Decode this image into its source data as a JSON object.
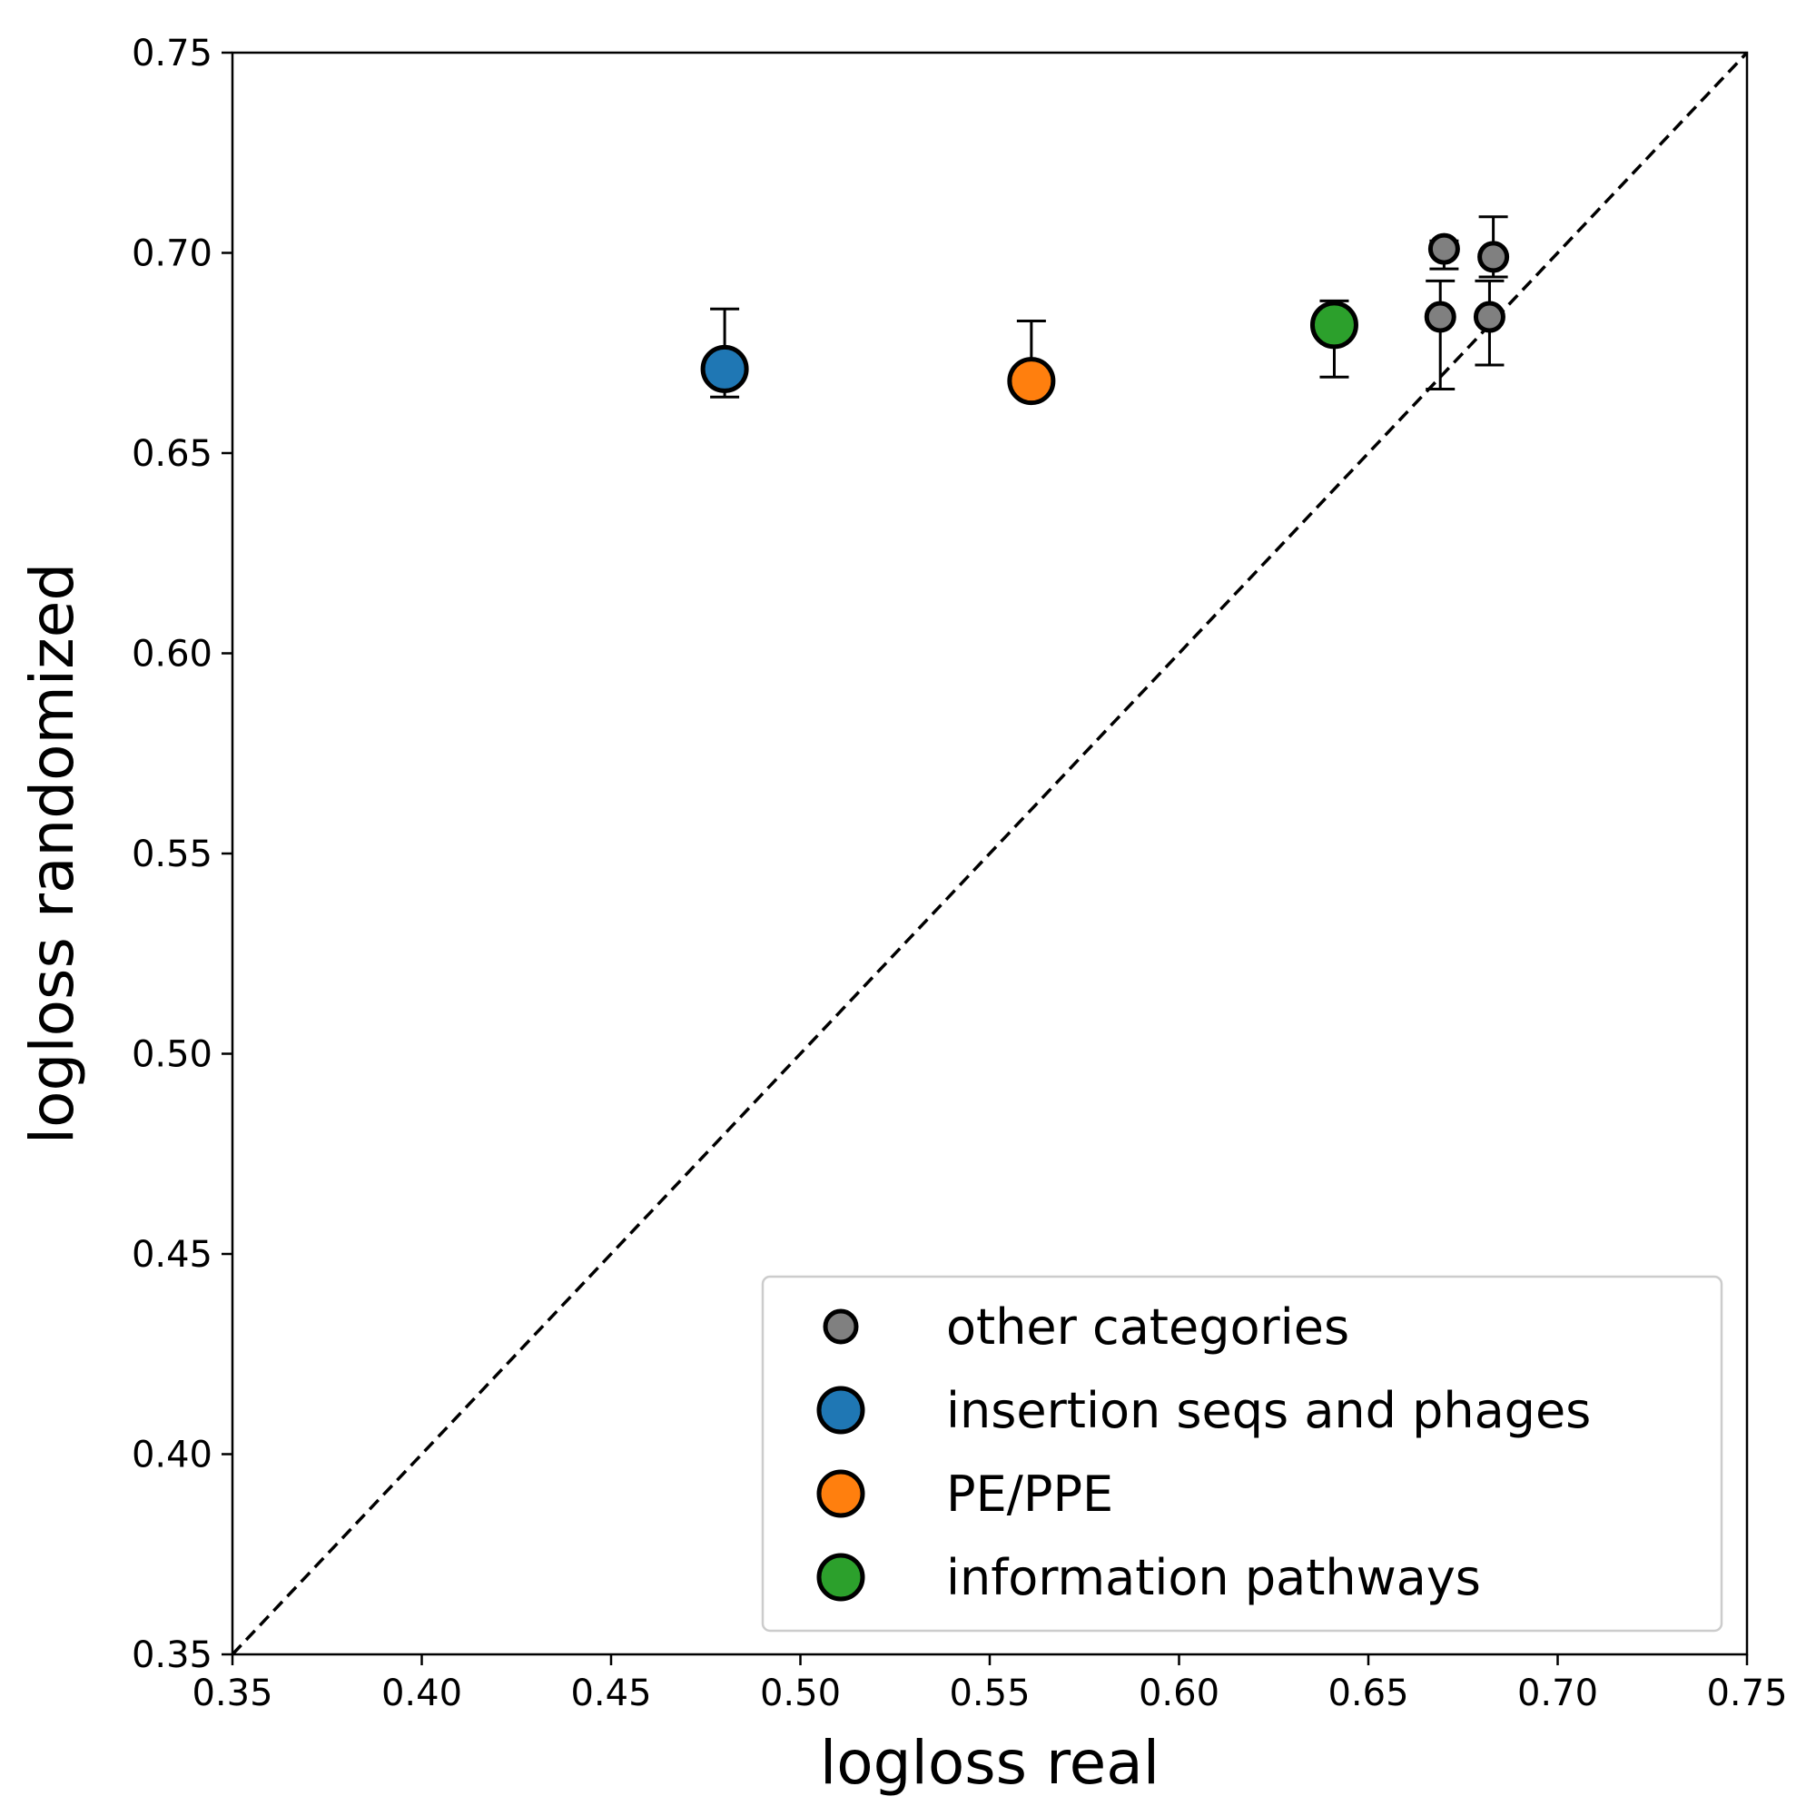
{
  "chart_data": {
    "type": "scatter",
    "title": "",
    "xlabel": "logloss real",
    "ylabel": "logloss randomized",
    "xlim": [
      0.35,
      0.75
    ],
    "ylim": [
      0.35,
      0.75
    ],
    "xticks": [
      "0.35",
      "0.40",
      "0.45",
      "0.50",
      "0.55",
      "0.60",
      "0.65",
      "0.70",
      "0.75"
    ],
    "yticks": [
      "0.35",
      "0.40",
      "0.45",
      "0.50",
      "0.55",
      "0.60",
      "0.65",
      "0.70",
      "0.75"
    ],
    "xtick_values": [
      0.35,
      0.4,
      0.45,
      0.5,
      0.55,
      0.6,
      0.65,
      0.7,
      0.75
    ],
    "ytick_values": [
      0.35,
      0.4,
      0.45,
      0.5,
      0.55,
      0.6,
      0.65,
      0.7,
      0.75
    ],
    "grid": false,
    "legend_position": "lower-right",
    "reference_line": {
      "style": "dashed",
      "from": [
        0.35,
        0.35
      ],
      "to": [
        0.75,
        0.75
      ],
      "color": "#000000"
    },
    "series": [
      {
        "name": "other categories",
        "color": "#808080",
        "marker_size": "small",
        "points": [
          {
            "x": 0.67,
            "y": 0.701,
            "err_low": 0.696,
            "err_high": 0.703
          },
          {
            "x": 0.683,
            "y": 0.699,
            "err_low": 0.694,
            "err_high": 0.709
          },
          {
            "x": 0.669,
            "y": 0.684,
            "err_low": 0.666,
            "err_high": 0.693
          },
          {
            "x": 0.682,
            "y": 0.684,
            "err_low": 0.672,
            "err_high": 0.693
          }
        ]
      },
      {
        "name": "insertion seqs and phages",
        "color": "#1f77b4",
        "marker_size": "large",
        "points": [
          {
            "x": 0.48,
            "y": 0.671,
            "err_low": 0.664,
            "err_high": 0.686
          }
        ]
      },
      {
        "name": "PE/PPE",
        "color": "#ff7f0e",
        "marker_size": "large",
        "points": [
          {
            "x": 0.561,
            "y": 0.668,
            "err_low": 0.664,
            "err_high": 0.683
          }
        ]
      },
      {
        "name": "information pathways",
        "color": "#2ca02c",
        "marker_size": "large",
        "points": [
          {
            "x": 0.641,
            "y": 0.682,
            "err_low": 0.669,
            "err_high": 0.688
          }
        ]
      }
    ]
  }
}
